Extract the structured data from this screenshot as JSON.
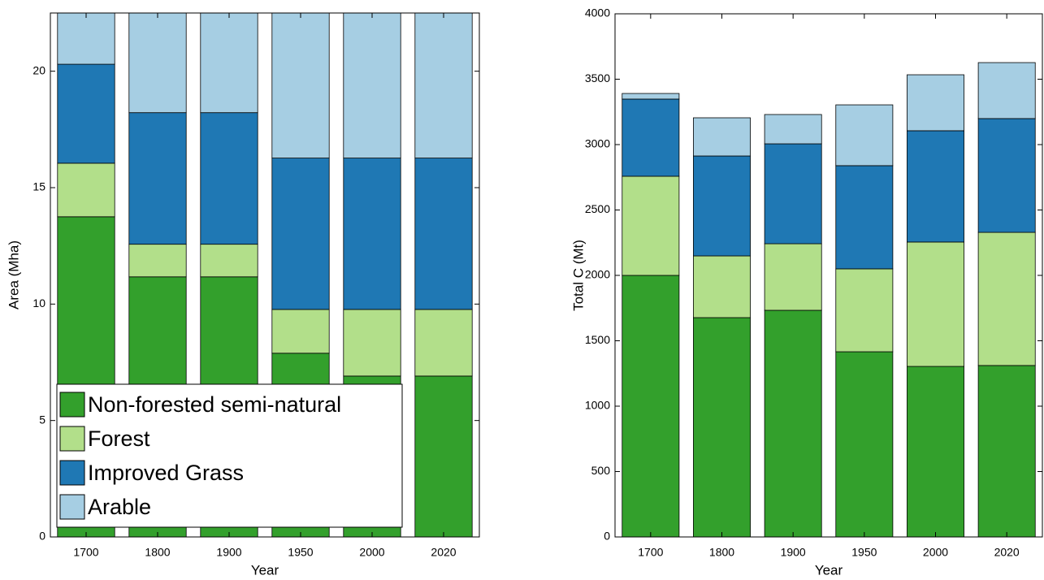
{
  "chart_data": [
    {
      "type": "bar",
      "stacked": true,
      "xlabel": "Year",
      "ylabel": "Area (Mha)",
      "categories": [
        "1700",
        "1800",
        "1900",
        "1950",
        "2000",
        "2020"
      ],
      "ylim": [
        0,
        22.5
      ],
      "yticks": [
        0,
        5,
        10,
        15,
        20
      ],
      "legend": "lower left",
      "series": [
        {
          "name": "Non-forested semi-natural",
          "color": "#33a02c",
          "values": [
            13.75,
            11.17,
            11.17,
            7.89,
            6.91,
            6.91
          ]
        },
        {
          "name": "Forest",
          "color": "#b2df8a",
          "values": [
            2.3,
            1.4,
            1.4,
            1.88,
            2.86,
            2.86
          ]
        },
        {
          "name": "Improved Grass",
          "color": "#1f78b4",
          "values": [
            4.25,
            5.65,
            5.65,
            6.5,
            6.5,
            6.5
          ]
        },
        {
          "name": "Arable",
          "color": "#a6cee3",
          "values": [
            3.7,
            5.78,
            5.78,
            7.73,
            7.73,
            7.73
          ]
        }
      ]
    },
    {
      "type": "bar",
      "stacked": true,
      "xlabel": "Year",
      "ylabel": "Total C (Mt)",
      "categories": [
        "1700",
        "1800",
        "1900",
        "1950",
        "2000",
        "2020"
      ],
      "ylim": [
        0,
        4000
      ],
      "yticks": [
        0,
        500,
        1000,
        1500,
        2000,
        2500,
        3000,
        3500,
        4000
      ],
      "series": [
        {
          "color": "#33a02c",
          "values": [
            2000,
            1677,
            1733,
            1416,
            1304,
            1311
          ]
        },
        {
          "color": "#b2df8a",
          "values": [
            758,
            472,
            509,
            634,
            951,
            1018
          ]
        },
        {
          "color": "#1f78b4",
          "values": [
            590,
            764,
            764,
            789,
            851,
            870
          ]
        },
        {
          "color": "#a6cee3",
          "values": [
            43,
            292,
            224,
            465,
            428,
            428
          ]
        }
      ]
    }
  ]
}
